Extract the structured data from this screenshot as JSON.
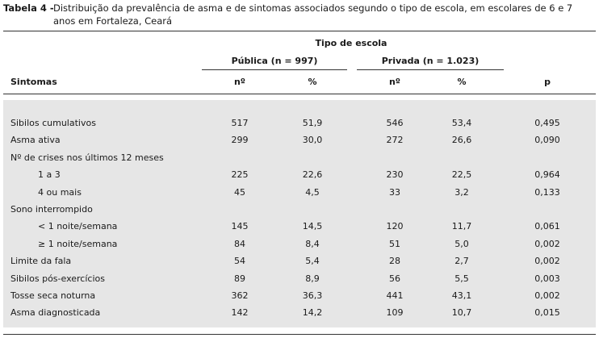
{
  "caption": {
    "label": "Tabela 4 -",
    "text": "Distribuição da prevalência de asma e de sintomas associados segundo o tipo de escola, em escolares de 6 e 7 anos em Fortaleza, Ceará"
  },
  "header": {
    "group": "Tipo de escola",
    "publica": "Pública (n = 997)",
    "privada": "Privada (n = 1.023)",
    "sintomas": "Sintomas",
    "n1": "nº",
    "pct1": "%",
    "n2": "nº",
    "pct2": "%",
    "p": "p"
  },
  "rows": [
    {
      "label": "Sibilos cumulativos",
      "indent": false,
      "n1": "517",
      "pct1": "51,9",
      "n2": "546",
      "pct2": "53,4",
      "p": "0,495"
    },
    {
      "label": "Asma ativa",
      "indent": false,
      "n1": "299",
      "pct1": "30,0",
      "n2": "272",
      "pct2": "26,6",
      "p": "0,090"
    },
    {
      "label": "Nº de crises nos últimos 12 meses",
      "indent": false,
      "n1": "",
      "pct1": "",
      "n2": "",
      "pct2": "",
      "p": ""
    },
    {
      "label": "1 a 3",
      "indent": true,
      "n1": "225",
      "pct1": "22,6",
      "n2": "230",
      "pct2": "22,5",
      "p": "0,964"
    },
    {
      "label": "4 ou mais",
      "indent": true,
      "n1": "45",
      "pct1": "4,5",
      "n2": "33",
      "pct2": "3,2",
      "p": "0,133"
    },
    {
      "label": "Sono interrompido",
      "indent": false,
      "n1": "",
      "pct1": "",
      "n2": "",
      "pct2": "",
      "p": ""
    },
    {
      "label": "< 1 noite/semana",
      "indent": true,
      "n1": "145",
      "pct1": "14,5",
      "n2": "120",
      "pct2": "11,7",
      "p": "0,061"
    },
    {
      "label": "≥ 1 noite/semana",
      "indent": true,
      "n1": "84",
      "pct1": "8,4",
      "n2": "51",
      "pct2": "5,0",
      "p": "0,002"
    },
    {
      "label": "Limite da fala",
      "indent": false,
      "n1": "54",
      "pct1": "5,4",
      "n2": "28",
      "pct2": "2,7",
      "p": "0,002"
    },
    {
      "label": "Sibilos pós-exercícios",
      "indent": false,
      "n1": "89",
      "pct1": "8,9",
      "n2": "56",
      "pct2": "5,5",
      "p": "0,003"
    },
    {
      "label": "Tosse seca noturna",
      "indent": false,
      "n1": "362",
      "pct1": "36,3",
      "n2": "441",
      "pct2": "43,1",
      "p": "0,002"
    },
    {
      "label": "Asma diagnosticada",
      "indent": false,
      "n1": "142",
      "pct1": "14,2",
      "n2": "109",
      "pct2": "10,7",
      "p": "0,015"
    }
  ]
}
